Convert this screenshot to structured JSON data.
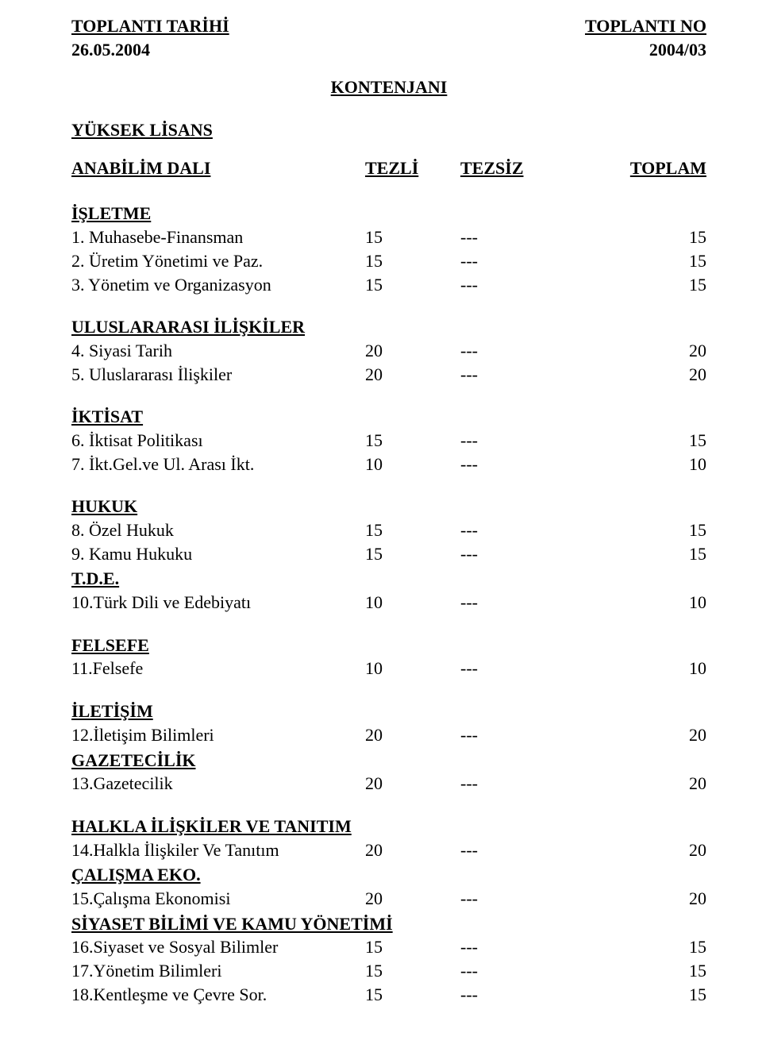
{
  "header": {
    "left_label": "TOPLANTI TARİHİ",
    "right_label": "TOPLANTI NO",
    "left_value": "26.05.2004",
    "right_value": "2004/03"
  },
  "center_title": "KONTENJANI",
  "section_label": "YÜKSEK LİSANS",
  "columns": {
    "c1": "ANABİLİM DALI",
    "c2": "TEZLİ",
    "c3": "TEZSİZ",
    "c4": "TOPLAM"
  },
  "groups": [
    {
      "title": "İŞLETME",
      "rows": [
        {
          "label": "1. Muhasebe-Finansman",
          "v1": "15",
          "v2": "---",
          "v3": "15"
        },
        {
          "label": "2. Üretim Yönetimi ve Paz.",
          "v1": "15",
          "v2": "---",
          "v3": "15"
        },
        {
          "label": "3. Yönetim ve Organizasyon",
          "v1": "15",
          "v2": "---",
          "v3": "15"
        }
      ],
      "gap_after": true
    },
    {
      "title": "ULUSLARARASI İLİŞKİLER",
      "rows": [
        {
          "label": "4. Siyasi Tarih",
          "v1": "20",
          "v2": "---",
          "v3": "20"
        },
        {
          "label": "5. Uluslararası İlişkiler",
          "v1": "20",
          "v2": "---",
          "v3": "20"
        }
      ],
      "gap_after": true
    },
    {
      "title": "İKTİSAT",
      "rows": [
        {
          "label": "6. İktisat Politikası",
          "v1": "15",
          "v2": "---",
          "v3": "15"
        },
        {
          "label": "7. İkt.Gel.ve Ul. Arası İkt.",
          "v1": "10",
          "v2": "---",
          "v3": "10"
        }
      ],
      "gap_after": true
    },
    {
      "title": "HUKUK",
      "rows": [
        {
          "label": "8. Özel Hukuk",
          "v1": "15",
          "v2": "---",
          "v3": "15"
        },
        {
          "label": "9. Kamu Hukuku",
          "v1": "15",
          "v2": "---",
          "v3": "15"
        }
      ],
      "gap_after": false
    },
    {
      "title": "T.D.E.",
      "rows": [
        {
          "label": "10.Türk Dili ve Edebiyatı",
          "v1": "10",
          "v2": "---",
          "v3": "10"
        }
      ],
      "gap_after": true
    },
    {
      "title": "FELSEFE",
      "rows": [
        {
          "label": "11.Felsefe",
          "v1": "10",
          "v2": "---",
          "v3": "10"
        }
      ],
      "gap_after": true
    },
    {
      "title": "İLETİŞİM",
      "rows": [
        {
          "label": "12.İletişim Bilimleri",
          "v1": "20",
          "v2": "---",
          "v3": "20"
        }
      ],
      "gap_after": false
    },
    {
      "title": "GAZETECİLİK",
      "rows": [
        {
          "label": "13.Gazetecilik",
          "v1": "20",
          "v2": "---",
          "v3": "20"
        }
      ],
      "gap_after": true
    },
    {
      "title": "HALKLA İLİŞKİLER VE TANITIM",
      "rows": [
        {
          "label": "14.Halkla İlişkiler Ve Tanıtım",
          "v1": "20",
          "v2": "---",
          "v3": "20"
        }
      ],
      "gap_after": false
    },
    {
      "title": "ÇALIŞMA EKO.",
      "rows": [
        {
          "label": "15.Çalışma Ekonomisi",
          "v1": "20",
          "v2": "---",
          "v3": "20"
        }
      ],
      "gap_after": false
    },
    {
      "title": "SİYASET BİLİMİ VE KAMU YÖNETİMİ",
      "rows": [
        {
          "label": "16.Siyaset ve Sosyal Bilimler",
          "v1": "15",
          "v2": "---",
          "v3": "15"
        },
        {
          "label": "17.Yönetim Bilimleri",
          "v1": "15",
          "v2": "---",
          "v3": "15"
        },
        {
          "label": "18.Kentleşme ve Çevre Sor.",
          "v1": "15",
          "v2": "---",
          "v3": "15"
        }
      ],
      "gap_after": false
    }
  ]
}
